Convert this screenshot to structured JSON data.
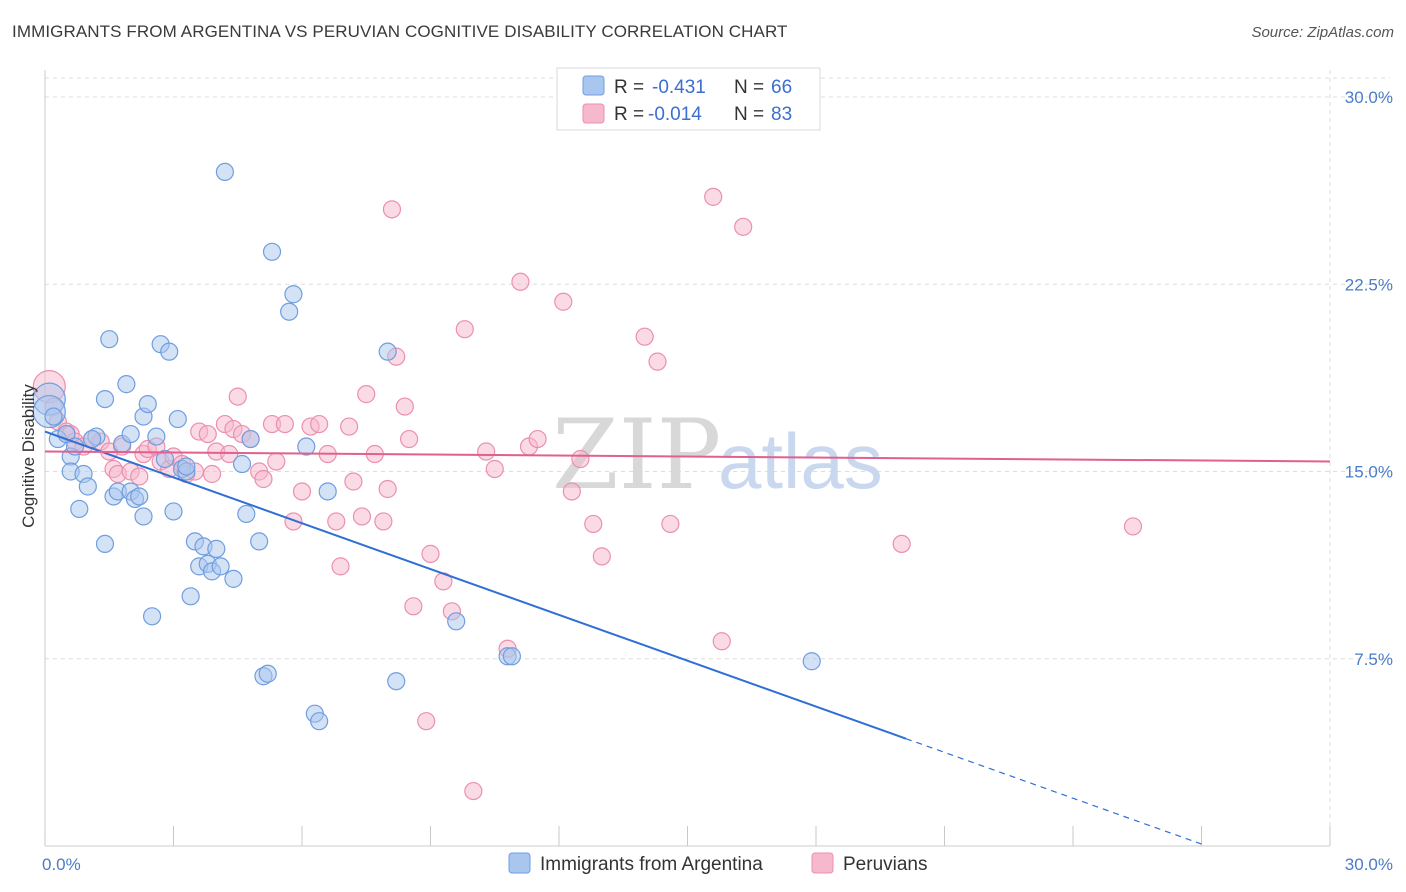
{
  "header": {
    "title": "IMMIGRANTS FROM ARGENTINA VS PERUVIAN COGNITIVE DISABILITY CORRELATION CHART",
    "source": "Source: ZipAtlas.com"
  },
  "watermark": {
    "zip": "ZIP",
    "atlas": "atlas"
  },
  "legend": {
    "rows": [
      {
        "r_label": "R =",
        "r_value": "-0.431",
        "n_label": "N =",
        "n_value": "66"
      },
      {
        "r_label": "R =",
        "r_value": "-0.014",
        "n_label": "N =",
        "n_value": "83"
      }
    ]
  },
  "colors": {
    "blue_fill": "#a9c6ee",
    "blue_stroke": "#6f9ee0",
    "blue_line": "#2f6fd6",
    "pink_fill": "#f6b8cc",
    "pink_stroke": "#ec8fae",
    "pink_line": "#e0608f",
    "grid": "#dcdcdc",
    "tick_text": "#4a7cc9"
  },
  "chart_data": {
    "type": "scatter",
    "title": "IMMIGRANTS FROM ARGENTINA VS PERUVIAN COGNITIVE DISABILITY CORRELATION CHART",
    "xlabel": "",
    "ylabel": "Cognitive Disability",
    "xlim": [
      0,
      30
    ],
    "ylim": [
      0,
      30
    ],
    "x_tick_labels": [
      "0.0%",
      "30.0%"
    ],
    "y_ticks": [
      7.5,
      15.0,
      22.5,
      30.0
    ],
    "y_tick_labels": [
      "7.5%",
      "15.0%",
      "22.5%",
      "30.0%"
    ],
    "grid": true,
    "legend_position": "top-center",
    "series": [
      {
        "name": "Immigrants from Argentina",
        "r": -0.431,
        "n": 66,
        "trend": {
          "x0": 0,
          "y0": 16.6,
          "x1": 20.1,
          "y1": 4.3,
          "dash_to_x": 27
        },
        "points": [
          [
            0.1,
            17.9
          ],
          [
            0.1,
            17.4
          ],
          [
            0.3,
            16.3
          ],
          [
            0.5,
            16.5
          ],
          [
            0.6,
            15.6
          ],
          [
            0.7,
            16.0
          ],
          [
            0.6,
            15.0
          ],
          [
            0.8,
            13.5
          ],
          [
            0.9,
            14.9
          ],
          [
            1.0,
            14.4
          ],
          [
            1.2,
            16.4
          ],
          [
            1.4,
            12.1
          ],
          [
            1.4,
            17.9
          ],
          [
            1.5,
            20.3
          ],
          [
            1.6,
            14.0
          ],
          [
            1.7,
            14.2
          ],
          [
            1.8,
            16.1
          ],
          [
            1.9,
            18.5
          ],
          [
            2.0,
            16.5
          ],
          [
            2.0,
            14.2
          ],
          [
            2.1,
            13.9
          ],
          [
            2.2,
            14.0
          ],
          [
            2.3,
            17.2
          ],
          [
            2.4,
            17.7
          ],
          [
            2.5,
            9.2
          ],
          [
            2.6,
            16.4
          ],
          [
            2.7,
            20.1
          ],
          [
            2.8,
            15.5
          ],
          [
            2.9,
            19.8
          ],
          [
            3.0,
            13.4
          ],
          [
            3.1,
            17.1
          ],
          [
            3.2,
            15.1
          ],
          [
            3.3,
            15.0
          ],
          [
            3.4,
            10.0
          ],
          [
            3.5,
            12.2
          ],
          [
            3.6,
            11.2
          ],
          [
            3.7,
            12.0
          ],
          [
            3.8,
            11.3
          ],
          [
            3.9,
            11.0
          ],
          [
            4.0,
            11.9
          ],
          [
            4.1,
            11.2
          ],
          [
            4.2,
            27.0
          ],
          [
            4.4,
            10.7
          ],
          [
            4.6,
            15.3
          ],
          [
            4.7,
            13.3
          ],
          [
            4.8,
            16.3
          ],
          [
            5.0,
            12.2
          ],
          [
            5.1,
            6.8
          ],
          [
            5.2,
            6.9
          ],
          [
            5.3,
            23.8
          ],
          [
            5.7,
            21.4
          ],
          [
            5.8,
            22.1
          ],
          [
            6.1,
            16.0
          ],
          [
            6.3,
            5.3
          ],
          [
            6.4,
            5.0
          ],
          [
            6.6,
            14.2
          ],
          [
            8.0,
            19.8
          ],
          [
            8.2,
            6.6
          ],
          [
            9.6,
            9.0
          ],
          [
            10.8,
            7.6
          ],
          [
            10.9,
            7.6
          ],
          [
            17.9,
            7.4
          ],
          [
            0.2,
            17.2
          ],
          [
            3.3,
            15.2
          ],
          [
            1.1,
            16.3
          ],
          [
            2.3,
            13.2
          ]
        ]
      },
      {
        "name": "Peruvians",
        "r": -0.014,
        "n": 83,
        "trend": {
          "x0": 0,
          "y0": 15.8,
          "x1": 30,
          "y1": 15.4
        },
        "points": [
          [
            0.1,
            18.4
          ],
          [
            0.2,
            17.6
          ],
          [
            0.3,
            17.0
          ],
          [
            0.5,
            16.6
          ],
          [
            0.6,
            16.5
          ],
          [
            0.7,
            16.2
          ],
          [
            0.9,
            16.0
          ],
          [
            1.1,
            16.3
          ],
          [
            1.3,
            16.2
          ],
          [
            1.5,
            15.8
          ],
          [
            1.6,
            15.1
          ],
          [
            1.7,
            14.9
          ],
          [
            1.8,
            16.0
          ],
          [
            2.0,
            15.0
          ],
          [
            2.2,
            14.8
          ],
          [
            2.3,
            15.7
          ],
          [
            2.4,
            15.9
          ],
          [
            2.6,
            16.0
          ],
          [
            2.7,
            15.4
          ],
          [
            2.9,
            15.1
          ],
          [
            3.0,
            15.6
          ],
          [
            3.2,
            15.3
          ],
          [
            3.3,
            14.9
          ],
          [
            3.5,
            15.0
          ],
          [
            3.6,
            16.6
          ],
          [
            3.8,
            16.5
          ],
          [
            3.9,
            14.9
          ],
          [
            4.0,
            15.8
          ],
          [
            4.2,
            16.9
          ],
          [
            4.3,
            15.7
          ],
          [
            4.4,
            16.7
          ],
          [
            4.5,
            18.0
          ],
          [
            4.6,
            16.5
          ],
          [
            4.8,
            16.3
          ],
          [
            5.0,
            15.0
          ],
          [
            5.1,
            14.7
          ],
          [
            5.3,
            16.9
          ],
          [
            5.4,
            15.4
          ],
          [
            5.6,
            16.9
          ],
          [
            5.8,
            13.0
          ],
          [
            6.0,
            14.2
          ],
          [
            6.2,
            16.8
          ],
          [
            6.4,
            16.9
          ],
          [
            6.6,
            15.7
          ],
          [
            6.8,
            13.0
          ],
          [
            6.9,
            11.2
          ],
          [
            7.1,
            16.8
          ],
          [
            7.2,
            14.6
          ],
          [
            7.4,
            13.2
          ],
          [
            7.5,
            18.1
          ],
          [
            7.7,
            15.7
          ],
          [
            7.9,
            13.0
          ],
          [
            8.0,
            14.3
          ],
          [
            8.2,
            19.6
          ],
          [
            8.4,
            17.6
          ],
          [
            8.5,
            16.3
          ],
          [
            8.6,
            9.6
          ],
          [
            8.9,
            5.0
          ],
          [
            9.0,
            11.7
          ],
          [
            9.3,
            10.6
          ],
          [
            9.5,
            9.4
          ],
          [
            9.8,
            20.7
          ],
          [
            10.0,
            2.2
          ],
          [
            10.3,
            15.8
          ],
          [
            10.5,
            15.1
          ],
          [
            10.8,
            7.9
          ],
          [
            11.1,
            22.6
          ],
          [
            11.3,
            16.0
          ],
          [
            11.5,
            16.3
          ],
          [
            12.1,
            21.8
          ],
          [
            12.3,
            14.2
          ],
          [
            12.5,
            15.5
          ],
          [
            12.8,
            12.9
          ],
          [
            13.0,
            11.6
          ],
          [
            14.0,
            20.4
          ],
          [
            14.3,
            19.4
          ],
          [
            14.6,
            12.9
          ],
          [
            15.6,
            26.0
          ],
          [
            15.8,
            8.2
          ],
          [
            16.3,
            24.8
          ],
          [
            20.0,
            12.1
          ],
          [
            25.4,
            12.8
          ],
          [
            8.1,
            25.5
          ]
        ]
      }
    ]
  },
  "bottom_legend": [
    {
      "label": "Immigrants from Argentina"
    },
    {
      "label": "Peruvians"
    }
  ]
}
